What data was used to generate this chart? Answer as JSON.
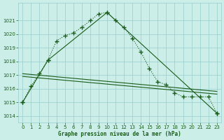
{
  "title": "Graphe pression niveau de la mer (hPa)",
  "bg_color": "#cceee8",
  "grid_color": "#99cccc",
  "line_color": "#1a5c1a",
  "xlim_min": -0.5,
  "xlim_max": 23.5,
  "ylim_min": 1013.5,
  "ylim_max": 1022.3,
  "yticks": [
    1014,
    1015,
    1016,
    1017,
    1018,
    1019,
    1020,
    1021
  ],
  "xticks": [
    0,
    1,
    2,
    3,
    4,
    5,
    6,
    7,
    8,
    9,
    10,
    11,
    12,
    13,
    14,
    15,
    16,
    17,
    18,
    19,
    20,
    21,
    22,
    23
  ],
  "curve1_x": [
    0,
    1,
    2,
    3,
    4,
    5,
    6,
    7,
    8,
    9,
    10,
    11,
    12,
    13,
    14,
    15,
    16,
    17,
    18,
    19,
    20,
    21,
    22,
    23
  ],
  "curve1_y": [
    1015.0,
    1016.2,
    1017.1,
    1018.1,
    1019.5,
    1019.9,
    1020.1,
    1020.5,
    1021.0,
    1021.5,
    1021.6,
    1021.0,
    1020.5,
    1019.7,
    1018.7,
    1017.5,
    1016.5,
    1016.3,
    1015.7,
    1015.4,
    1015.4,
    1015.4,
    1015.4,
    1014.2
  ],
  "curve2_x": [
    0,
    3,
    10,
    23
  ],
  "curve2_y": [
    1015.0,
    1018.1,
    1021.6,
    1014.2
  ],
  "line3_x": [
    0,
    23
  ],
  "line3_y": [
    1017.1,
    1015.8
  ],
  "line4_x": [
    0,
    23
  ],
  "line4_y": [
    1016.9,
    1015.6
  ]
}
